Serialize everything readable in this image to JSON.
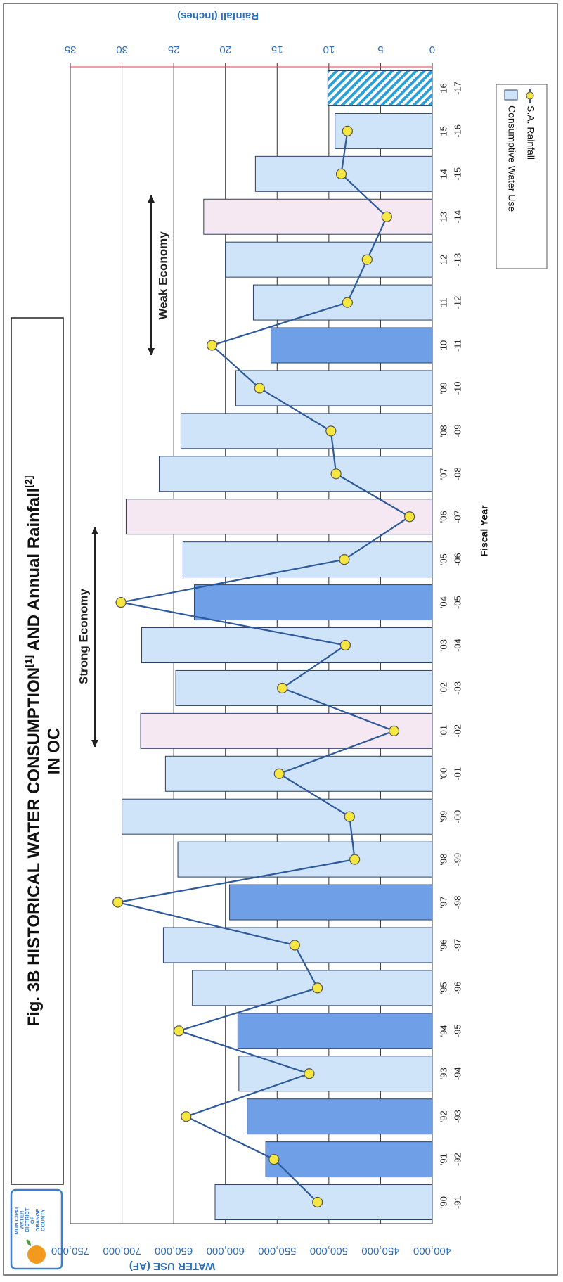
{
  "chart_data": {
    "type": "bar_line",
    "title": "Fig. 3B  HISTORICAL WATER CONSUMPTION",
    "title_sup1": "[1]",
    "title_mid": " AND Annual Rainfall",
    "title_sup2": "[2]",
    "title_line2": "IN OC",
    "logo": [
      "MUNICIPAL",
      "WATER",
      "DISTRICT",
      "OF",
      "ORANGE",
      "COUNTY"
    ],
    "y_label": "WATER USE (AF)",
    "y2_label": "Rainfall (Inches)",
    "x_label": "Fiscal Year",
    "annotations": [
      "Strong Economy",
      "Weak Economy"
    ],
    "categories": [
      [
        "'90",
        "-91"
      ],
      [
        "'91",
        "-92"
      ],
      [
        "'92",
        "-93"
      ],
      [
        "'93",
        "-94"
      ],
      [
        "'94",
        "-95"
      ],
      [
        "'95",
        "-96"
      ],
      [
        "'96",
        "-97"
      ],
      [
        "'97",
        "-98"
      ],
      [
        "'98",
        "-99"
      ],
      [
        "'99",
        "-00"
      ],
      [
        "'00",
        "-01"
      ],
      [
        "'01",
        "-02"
      ],
      [
        "'02",
        "-03"
      ],
      [
        "'03",
        "-04"
      ],
      [
        "'04",
        "-05"
      ],
      [
        "'05",
        "-06"
      ],
      [
        "'06",
        "-07"
      ],
      [
        "'07",
        "-08"
      ],
      [
        "'08",
        "-09"
      ],
      [
        "'09",
        "-10"
      ],
      [
        "10",
        "-11"
      ],
      [
        "11",
        "-12"
      ],
      [
        "12",
        "-13"
      ],
      [
        "13",
        "-14"
      ],
      [
        "14",
        "-15"
      ],
      [
        "15",
        "-16"
      ],
      [
        "16",
        "-17"
      ]
    ],
    "series": [
      {
        "name": "Consumptive Water Use",
        "color": "#cfe4f8",
        "colors": [
          "#cfe4f8",
          "#6f9fe6",
          "#6f9fe6",
          "#cfe4f8",
          "#6f9fe6",
          "#cfe4f8",
          "#cfe4f8",
          "#6f9fe6",
          "#cfe4f8",
          "#cfe4f8",
          "#cfe4f8",
          "#f6e8f2",
          "#cfe4f8",
          "#cfe4f8",
          "#6f9fe6",
          "#cfe4f8",
          "#f6e8f2",
          "#cfe4f8",
          "#cfe4f8",
          "#cfe4f8",
          "#6f9fe6",
          "#cfe4f8",
          "#cfe4f8",
          "#f6e8f2",
          "#cfe4f8",
          "#cfe4f8",
          "#2a9fd8"
        ],
        "hatched": [
          26
        ],
        "values": [
          610000,
          561000,
          579000,
          587000,
          588000,
          632000,
          660000,
          596000,
          646000,
          700000,
          658000,
          682000,
          648000,
          681000,
          630000,
          641000,
          696000,
          664000,
          643000,
          590000,
          556000,
          573000,
          600000,
          621000,
          571000,
          494000,
          501000
        ]
      },
      {
        "name": "S.A. Rainfall",
        "color": "#2e5a9c",
        "marker_color": "#f5e642",
        "axis": "y2",
        "values": [
          11.1,
          15.3,
          23.8,
          11.9,
          24.5,
          11.1,
          13.3,
          30.4,
          7.5,
          8.0,
          14.8,
          3.7,
          14.5,
          8.4,
          30.1,
          8.5,
          2.2,
          9.3,
          9.8,
          16.7,
          21.3,
          8.2,
          6.3,
          4.4,
          8.8,
          8.2,
          null
        ]
      }
    ],
    "ylim": [
      400000,
      750000
    ],
    "yticks": [
      {
        "value": 400000,
        "label": "400,000"
      },
      {
        "value": 450000,
        "label": "450,000"
      },
      {
        "value": 500000,
        "label": "500,000"
      },
      {
        "value": 550000,
        "label": "550,000"
      },
      {
        "value": 600000,
        "label": "600,000"
      },
      {
        "value": 650000,
        "label": "650,000"
      },
      {
        "value": 700000,
        "label": "700,000"
      },
      {
        "value": 750000,
        "label": "750,000"
      }
    ],
    "y2lim": [
      0,
      35
    ],
    "y2ticks": [
      0,
      5,
      10,
      15,
      20,
      25,
      30,
      35
    ],
    "grid": true
  }
}
